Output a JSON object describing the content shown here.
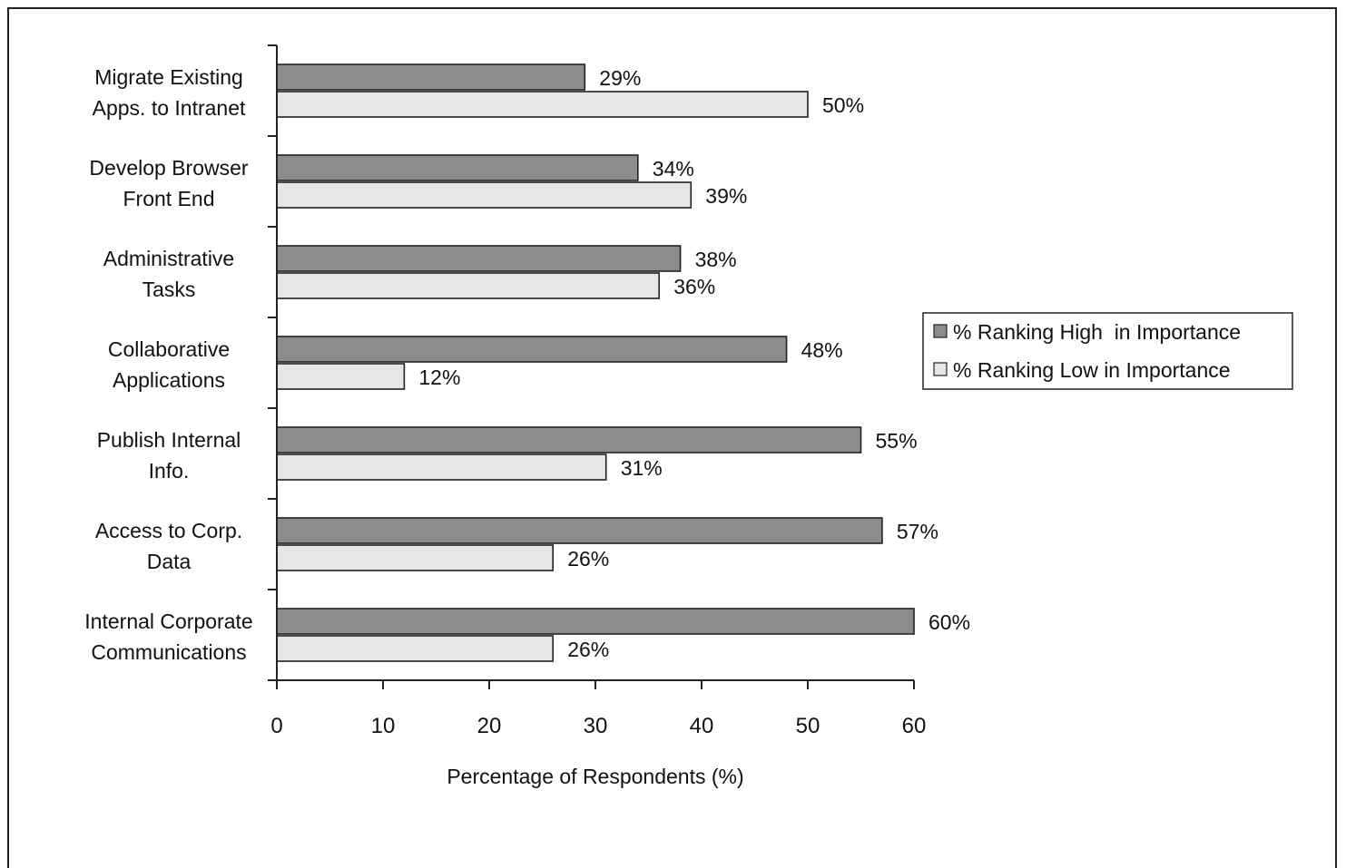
{
  "chart_data": {
    "type": "bar",
    "orientation": "horizontal",
    "categories": [
      [
        "Migrate Existing",
        "Apps. to Intranet"
      ],
      [
        "Develop Browser",
        "Front End"
      ],
      [
        "Administrative",
        "Tasks"
      ],
      [
        "Collaborative",
        "Applications"
      ],
      [
        "Publish Internal",
        "Info."
      ],
      [
        "Access to Corp.",
        "Data"
      ],
      [
        "Internal Corporate",
        "Communications"
      ]
    ],
    "series": [
      {
        "name": "% Ranking High  in Importance",
        "values": [
          29,
          34,
          38,
          48,
          55,
          57,
          60
        ],
        "color": "#8c8c8c"
      },
      {
        "name": "% Ranking Low in Importance",
        "values": [
          50,
          39,
          36,
          12,
          31,
          26,
          26
        ],
        "color": "#e6e6e6"
      }
    ],
    "value_labels": [
      [
        "29%",
        "34%",
        "38%",
        "48%",
        "55%",
        "57%",
        "60%"
      ],
      [
        "50%",
        "39%",
        "36%",
        "12%",
        "31%",
        "26%",
        "26%"
      ]
    ],
    "xlabel": "Percentage of Respondents (%)",
    "ylabel": "",
    "xlim": [
      0,
      60
    ],
    "xticks": [
      "0",
      "10",
      "20",
      "30",
      "40",
      "50",
      "60"
    ],
    "grid": false,
    "legend_position": "right"
  }
}
